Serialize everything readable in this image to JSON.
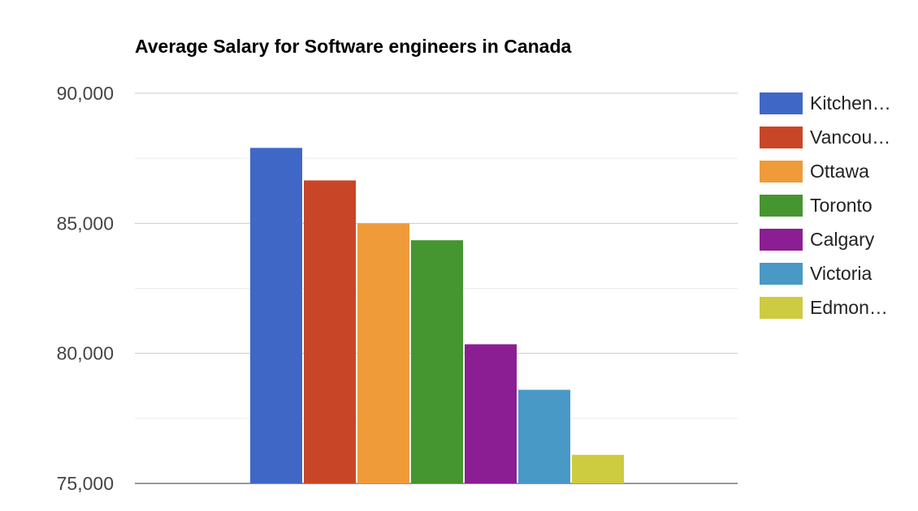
{
  "chart_data": {
    "type": "bar",
    "title": "Average Salary for Software engineers in Canada",
    "xlabel": "",
    "ylabel": "",
    "ylim": [
      75000,
      90000
    ],
    "y_ticks": [
      75000,
      80000,
      85000,
      90000
    ],
    "y_tick_labels": [
      "75,000",
      "80,000",
      "85,000",
      "90,000"
    ],
    "minor_gridlines": true,
    "legend_position": "right",
    "series": [
      {
        "name": "Kitchen…",
        "value": 87900,
        "color": "#3f67c6"
      },
      {
        "name": "Vancou…",
        "value": 86650,
        "color": "#c84627"
      },
      {
        "name": "Ottawa",
        "value": 85000,
        "color": "#ef9b39"
      },
      {
        "name": "Toronto",
        "value": 84350,
        "color": "#459531"
      },
      {
        "name": "Calgary",
        "value": 80350,
        "color": "#8b1e92"
      },
      {
        "name": "Victoria",
        "value": 78600,
        "color": "#4899c5"
      },
      {
        "name": "Edmon…",
        "value": 76100,
        "color": "#cdcb3f"
      }
    ]
  }
}
